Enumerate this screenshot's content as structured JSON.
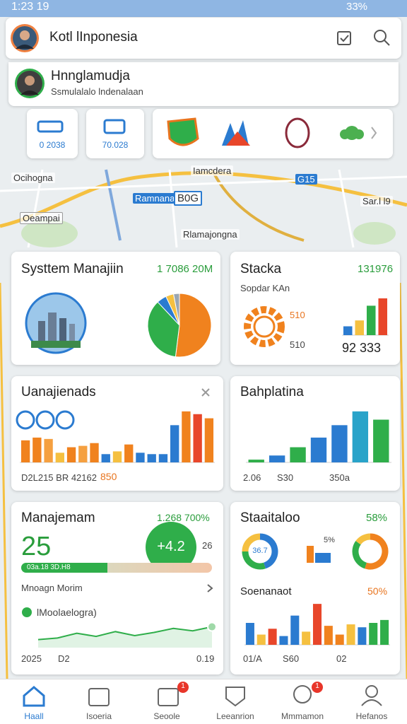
{
  "status_bar": {
    "time": "1:23 19",
    "battery": "33%"
  },
  "header": {
    "title": "Kotl lInponesia"
  },
  "profile": {
    "name": "Hnnglamudja",
    "subtitle": "Ssmulalalo lndenalaan"
  },
  "tiles": [
    {
      "label": "0 2038"
    },
    {
      "label": "70.028"
    }
  ],
  "map_labels": [
    "Ocihogna",
    "Iamcdera",
    "G15",
    "Ramnana",
    "B0G",
    "Sar.l l9",
    "Oeampai",
    "Rlamajongna"
  ],
  "cards": [
    {
      "title": "Systtem Manajiin",
      "value": "1 7086 20M",
      "chart": {
        "type": "pie",
        "values": [
          52,
          36,
          5,
          4,
          3
        ],
        "colors": [
          "#f0821e",
          "#2fae4a",
          "#2b7bd0",
          "#f5c040",
          "#9aa6b2"
        ]
      }
    },
    {
      "title": "Stacka",
      "value": "131976",
      "subtitle": "Sopdar KAn",
      "labels": [
        "510",
        "510"
      ],
      "footer": "92 333",
      "chart": {
        "type": "bar",
        "values": [
          12,
          20,
          40,
          50
        ],
        "colors": [
          "#2b7bd0",
          "#f5c040",
          "#2fae4a",
          "#e8462a"
        ],
        "ylim": [
          0,
          50
        ]
      }
    },
    {
      "title": "Uanajienads",
      "footer": "D2L215 BR 42162",
      "badge": "850",
      "chart": {
        "type": "bar",
        "values": [
          32,
          36,
          34,
          14,
          22,
          24,
          28,
          12,
          16,
          26,
          14,
          12,
          12,
          54,
          74,
          70,
          64
        ],
        "colors": [
          "#f0821e",
          "#f0821e",
          "#f5a040",
          "#f5c040",
          "#f0821e",
          "#f5a040",
          "#f0821e",
          "#2b7bd0",
          "#f5c040",
          "#f0821e",
          "#2b7bd0",
          "#2b7bd0",
          "#2b7bd0",
          "#2b7bd0",
          "#f0821e",
          "#e8462a",
          "#f0821e"
        ],
        "ylim": [
          0,
          80
        ]
      }
    },
    {
      "title": "Bahplatina",
      "footer": [
        "2.06",
        "S30",
        "350a"
      ],
      "chart": {
        "type": "bar",
        "values": [
          4,
          10,
          22,
          36,
          54,
          74,
          62
        ],
        "colors": [
          "#2fae4a",
          "#2b7bd0",
          "#2fae4a",
          "#2b7bd0",
          "#2b7bd0",
          "#29a3c9",
          "#2fae4a"
        ],
        "ylim": [
          0,
          80
        ]
      }
    },
    {
      "title": "Manajemam",
      "value": "1.268 700%",
      "big": "25",
      "circle": "+4.2",
      "side": "26",
      "progress": {
        "value": 45,
        "max": 100,
        "label": "03a.18 3D.H8"
      },
      "row": "Mnoagn Morim",
      "legend": "lMoolaelogra)",
      "chart": {
        "type": "line",
        "values": [
          10,
          12,
          18,
          14,
          20,
          15,
          19,
          24,
          21,
          26
        ],
        "colors": [
          "#2fae4a"
        ],
        "ylim": [
          0,
          30
        ]
      },
      "footer": [
        "2025",
        "D2",
        "0.19"
      ]
    },
    {
      "title": "Staaitaloo",
      "value": "58%",
      "donut_label": "36.7",
      "mini": "5%",
      "subtitle": "Soenanaot",
      "subvalue": "50%",
      "donuts": [
        {
          "type": "donut",
          "values": [
            45,
            30,
            25
          ],
          "colors": [
            "#2b7bd0",
            "#2fae4a",
            "#f5c040"
          ]
        },
        {
          "type": "donut",
          "values": [
            55,
            30,
            15
          ],
          "colors": [
            "#f0821e",
            "#2fae4a",
            "#f5c040"
          ]
        }
      ],
      "chart": {
        "type": "bar",
        "values": [
          30,
          14,
          22,
          12,
          40,
          18,
          56,
          26,
          14,
          28,
          24,
          30,
          34
        ],
        "colors": [
          "#2b7bd0",
          "#f5c040",
          "#e8462a",
          "#2b7bd0",
          "#2b7bd0",
          "#f5c040",
          "#e8462a",
          "#f0821e",
          "#f0821e",
          "#f5c040",
          "#2b7bd0",
          "#2fae4a",
          "#2fae4a"
        ],
        "ylim": [
          0,
          60
        ]
      },
      "footer": [
        "01/A",
        "S60",
        "02"
      ]
    }
  ],
  "nav": [
    "Haall",
    "Isoeria",
    "Seoole",
    "Leeanrion",
    "Mmmamon",
    "Hefanos"
  ],
  "nav_badges": [
    "1",
    "1"
  ]
}
